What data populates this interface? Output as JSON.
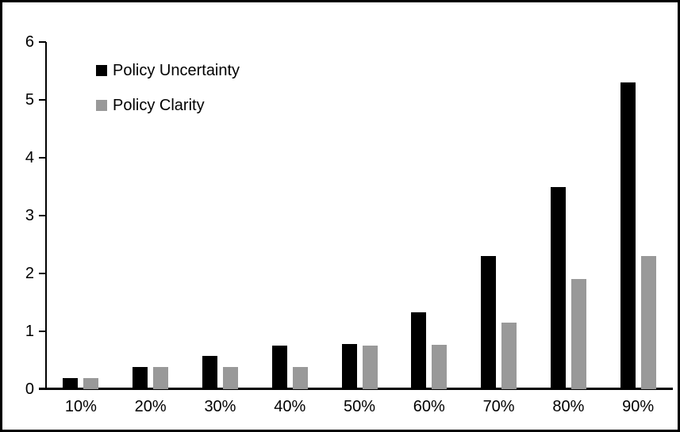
{
  "chart_data": {
    "type": "bar",
    "title": "",
    "xlabel": "",
    "ylabel": "",
    "categories": [
      "10%",
      "20%",
      "30%",
      "40%",
      "50%",
      "60%",
      "70%",
      "80%",
      "90%"
    ],
    "series": [
      {
        "name": "Policy Uncertainty",
        "color": "#000000",
        "values": [
          0.19,
          0.38,
          0.57,
          0.76,
          0.78,
          1.33,
          2.3,
          3.5,
          5.3
        ]
      },
      {
        "name": "Policy Clarity",
        "color": "#999999",
        "values": [
          0.19,
          0.38,
          0.38,
          0.38,
          0.76,
          0.77,
          1.15,
          1.9,
          2.3
        ]
      }
    ],
    "ylim": [
      0,
      6
    ],
    "yticks": [
      0,
      1,
      2,
      3,
      4,
      5,
      6
    ],
    "grid": false,
    "legend_position": "top-left-inside"
  },
  "colors": {
    "axis": "#000000",
    "frame_border": "#000000",
    "background": "#ffffff"
  }
}
